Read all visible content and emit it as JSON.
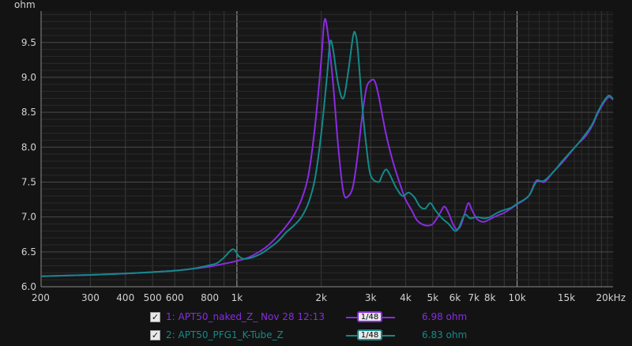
{
  "chart_data": {
    "type": "line",
    "ylabel": "ohm",
    "x_scale": "log",
    "xlim": [
      200,
      22000
    ],
    "ylim": [
      6.0,
      9.95
    ],
    "y_ticks": [
      6.0,
      6.5,
      7.0,
      7.5,
      8.0,
      8.5,
      9.0,
      9.5
    ],
    "y_tick_labels": [
      "6.0",
      "6.5",
      "7.0",
      "7.5",
      "8.0",
      "8.5",
      "9.0",
      "9.5"
    ],
    "x_ticks": [
      200,
      300,
      400,
      500,
      600,
      800,
      1000,
      2000,
      3000,
      4000,
      5000,
      6000,
      7000,
      8000,
      10000,
      15000,
      20000
    ],
    "x_tick_labels": [
      "200",
      "300",
      "400",
      "500",
      "600",
      "800",
      "1k",
      "2k",
      "3k",
      "4k",
      "5k",
      "6k",
      "7k",
      "8k",
      "10k",
      "15k",
      "20kHz"
    ],
    "grid": true,
    "series": [
      {
        "name": "APT50_naked_Z_ Nov 28 12:13",
        "color": "#8a2be2",
        "points": [
          [
            200,
            6.15
          ],
          [
            300,
            6.17
          ],
          [
            400,
            6.19
          ],
          [
            500,
            6.21
          ],
          [
            600,
            6.23
          ],
          [
            700,
            6.26
          ],
          [
            800,
            6.29
          ],
          [
            900,
            6.33
          ],
          [
            1000,
            6.37
          ],
          [
            1100,
            6.42
          ],
          [
            1200,
            6.5
          ],
          [
            1300,
            6.6
          ],
          [
            1400,
            6.73
          ],
          [
            1500,
            6.87
          ],
          [
            1600,
            7.03
          ],
          [
            1700,
            7.25
          ],
          [
            1800,
            7.6
          ],
          [
            1900,
            8.3
          ],
          [
            2000,
            9.25
          ],
          [
            2050,
            9.8
          ],
          [
            2100,
            9.7
          ],
          [
            2200,
            8.95
          ],
          [
            2300,
            8.0
          ],
          [
            2400,
            7.35
          ],
          [
            2500,
            7.3
          ],
          [
            2600,
            7.45
          ],
          [
            2700,
            7.9
          ],
          [
            2800,
            8.45
          ],
          [
            2900,
            8.85
          ],
          [
            3000,
            8.95
          ],
          [
            3100,
            8.95
          ],
          [
            3200,
            8.75
          ],
          [
            3400,
            8.2
          ],
          [
            3600,
            7.8
          ],
          [
            3800,
            7.5
          ],
          [
            4000,
            7.25
          ],
          [
            4200,
            7.1
          ],
          [
            4400,
            6.95
          ],
          [
            4700,
            6.88
          ],
          [
            5000,
            6.9
          ],
          [
            5300,
            7.05
          ],
          [
            5500,
            7.15
          ],
          [
            5700,
            7.05
          ],
          [
            5900,
            6.9
          ],
          [
            6100,
            6.82
          ],
          [
            6300,
            6.88
          ],
          [
            6500,
            7.05
          ],
          [
            6700,
            7.2
          ],
          [
            6900,
            7.1
          ],
          [
            7200,
            6.97
          ],
          [
            7600,
            6.93
          ],
          [
            8000,
            6.97
          ],
          [
            8500,
            7.02
          ],
          [
            9000,
            7.06
          ],
          [
            9500,
            7.12
          ],
          [
            10000,
            7.18
          ],
          [
            11000,
            7.3
          ],
          [
            11700,
            7.52
          ],
          [
            12500,
            7.5
          ],
          [
            13500,
            7.65
          ],
          [
            14500,
            7.78
          ],
          [
            15500,
            7.92
          ],
          [
            16500,
            8.05
          ],
          [
            17500,
            8.15
          ],
          [
            18500,
            8.3
          ],
          [
            19500,
            8.5
          ],
          [
            20500,
            8.65
          ],
          [
            21300,
            8.72
          ],
          [
            22000,
            8.68
          ]
        ]
      },
      {
        "name": "APT50_PFG1_K-Tube_Z",
        "color": "#14898a",
        "points": [
          [
            200,
            6.15
          ],
          [
            300,
            6.17
          ],
          [
            400,
            6.19
          ],
          [
            500,
            6.21
          ],
          [
            600,
            6.23
          ],
          [
            700,
            6.26
          ],
          [
            800,
            6.31
          ],
          [
            850,
            6.34
          ],
          [
            900,
            6.42
          ],
          [
            950,
            6.52
          ],
          [
            980,
            6.53
          ],
          [
            1020,
            6.43
          ],
          [
            1080,
            6.4
          ],
          [
            1200,
            6.46
          ],
          [
            1300,
            6.55
          ],
          [
            1400,
            6.65
          ],
          [
            1500,
            6.78
          ],
          [
            1600,
            6.88
          ],
          [
            1700,
            7.0
          ],
          [
            1800,
            7.2
          ],
          [
            1900,
            7.55
          ],
          [
            2000,
            8.2
          ],
          [
            2100,
            9.05
          ],
          [
            2150,
            9.5
          ],
          [
            2200,
            9.42
          ],
          [
            2300,
            8.9
          ],
          [
            2400,
            8.7
          ],
          [
            2500,
            9.1
          ],
          [
            2600,
            9.6
          ],
          [
            2650,
            9.62
          ],
          [
            2700,
            9.4
          ],
          [
            2800,
            8.6
          ],
          [
            2900,
            8.0
          ],
          [
            3000,
            7.6
          ],
          [
            3200,
            7.5
          ],
          [
            3300,
            7.6
          ],
          [
            3400,
            7.68
          ],
          [
            3500,
            7.62
          ],
          [
            3700,
            7.42
          ],
          [
            3900,
            7.3
          ],
          [
            4100,
            7.35
          ],
          [
            4300,
            7.28
          ],
          [
            4500,
            7.15
          ],
          [
            4700,
            7.12
          ],
          [
            4900,
            7.2
          ],
          [
            5100,
            7.1
          ],
          [
            5400,
            6.98
          ],
          [
            5700,
            6.9
          ],
          [
            6000,
            6.8
          ],
          [
            6200,
            6.85
          ],
          [
            6500,
            7.03
          ],
          [
            6800,
            6.98
          ],
          [
            7200,
            7.0
          ],
          [
            7600,
            6.98
          ],
          [
            8000,
            7.0
          ],
          [
            8500,
            7.06
          ],
          [
            9000,
            7.1
          ],
          [
            9500,
            7.13
          ],
          [
            10000,
            7.19
          ],
          [
            11000,
            7.3
          ],
          [
            11700,
            7.5
          ],
          [
            12500,
            7.52
          ],
          [
            13500,
            7.65
          ],
          [
            14500,
            7.8
          ],
          [
            15500,
            7.93
          ],
          [
            16500,
            8.05
          ],
          [
            17500,
            8.18
          ],
          [
            18500,
            8.32
          ],
          [
            19500,
            8.52
          ],
          [
            20500,
            8.67
          ],
          [
            21300,
            8.74
          ],
          [
            22000,
            8.69
          ]
        ]
      }
    ]
  },
  "legend": [
    {
      "checked": "✓",
      "label": "1: APT50_naked_Z_ Nov 28 12:13",
      "smoothing": "1/48",
      "value": "6.98 ohm",
      "color": "#8a2be2"
    },
    {
      "checked": "✓",
      "label": "2: APT50_PFG1_K-Tube_Z",
      "smoothing": "1/48",
      "value": "6.83 ohm",
      "color": "#14898a"
    }
  ]
}
